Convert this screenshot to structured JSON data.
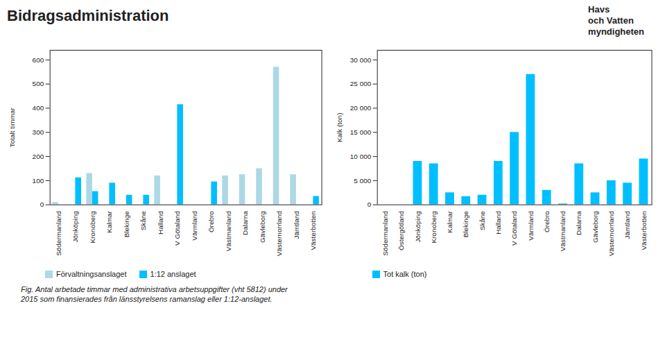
{
  "title": "Bidragsadministration",
  "annotations": [
    "Havs",
    "och Vatten",
    "myndigheten"
  ],
  "caption": "Fig. Antal arbetade timmar med administrativa arbetsuppgifter (vht 5812) under\n2015 som finansierades från länsstyrelsens ramanslag eller 1:12-anslaget.",
  "chart_data": [
    {
      "type": "bar",
      "categories": [
        "Södermanland",
        "Jönköping",
        "Kronoberg",
        "Kalmar",
        "Blekinge",
        "Skåne",
        "Halland",
        "V Götaland",
        "Värmland",
        "Örebro",
        "Västmanland",
        "Dalarna",
        "Gävleborg",
        "Västernorrland",
        "Jämtland",
        "Västerbotten"
      ],
      "series": [
        {
          "name": "Förvaltningsanslaget",
          "color": "#ADD8E6",
          "values": [
            10,
            0,
            130,
            0,
            0,
            0,
            120,
            0,
            0,
            0,
            120,
            125,
            150,
            570,
            125,
            0
          ]
        },
        {
          "name": "1:12 anslaget",
          "color": "#00BFFF",
          "values": [
            0,
            112,
            55,
            90,
            40,
            40,
            0,
            415,
            0,
            95,
            0,
            0,
            0,
            0,
            0,
            35
          ]
        }
      ],
      "ylabel": "Totalt timmar",
      "ylim": [
        0,
        640
      ],
      "yticks": [
        0,
        100,
        200,
        300,
        400,
        500,
        600
      ],
      "grid": false,
      "legend": "bottom"
    },
    {
      "type": "bar",
      "categories": [
        "Södermanland",
        "Östergötland",
        "Jönköping",
        "Kronoberg",
        "Kalmar",
        "Blekinge",
        "Skåne",
        "Halland",
        "V Götaland",
        "Värmland",
        "Örebro",
        "Västmanland",
        "Dalarna",
        "Gävleborg",
        "Västernorrland",
        "Jämtland",
        "Västerbotten"
      ],
      "series": [
        {
          "name": "Tot kalk (ton)",
          "color": "#00BFFF",
          "values": [
            0,
            0,
            9000,
            8500,
            2500,
            1700,
            2000,
            9000,
            15000,
            27000,
            3000,
            200,
            8500,
            2500,
            5000,
            4500,
            9500
          ]
        }
      ],
      "ylabel": "Kalk (ton)",
      "ylim": [
        0,
        32000
      ],
      "yticks": [
        0,
        {
          "value": 5000,
          "label": "5 000"
        },
        {
          "value": 10000,
          "label": "10 000"
        },
        {
          "value": 15000,
          "label": "15 000"
        },
        {
          "value": 20000,
          "label": "20 000"
        },
        {
          "value": 25000,
          "label": "25 000"
        },
        {
          "value": 30000,
          "label": "30 000"
        }
      ],
      "grid": false,
      "legend": "bottom"
    }
  ]
}
